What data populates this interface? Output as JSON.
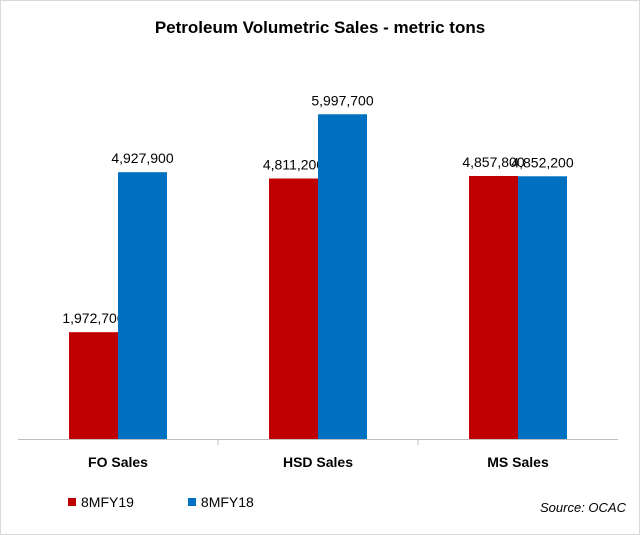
{
  "chart_data": {
    "type": "bar",
    "title": "Petroleum Volumetric Sales - metric tons",
    "categories": [
      "FO Sales",
      "HSD Sales",
      "MS Sales"
    ],
    "series": [
      {
        "name": "8MFY19",
        "color": "#c00000",
        "values": [
          1972700,
          4811200,
          4857800
        ],
        "labels": [
          "1,972,700",
          "4,811,200",
          "4,857,800"
        ]
      },
      {
        "name": "8MFY18",
        "color": "#0070c0",
        "values": [
          4927900,
          5997700,
          4852200
        ],
        "labels": [
          "4,927,900",
          "5,997,700",
          "4,852,200"
        ]
      }
    ],
    "ylim": [
      0,
      7000000
    ],
    "grid": false,
    "legend_position": "bottom-left"
  },
  "source": "Source:  OCAC"
}
